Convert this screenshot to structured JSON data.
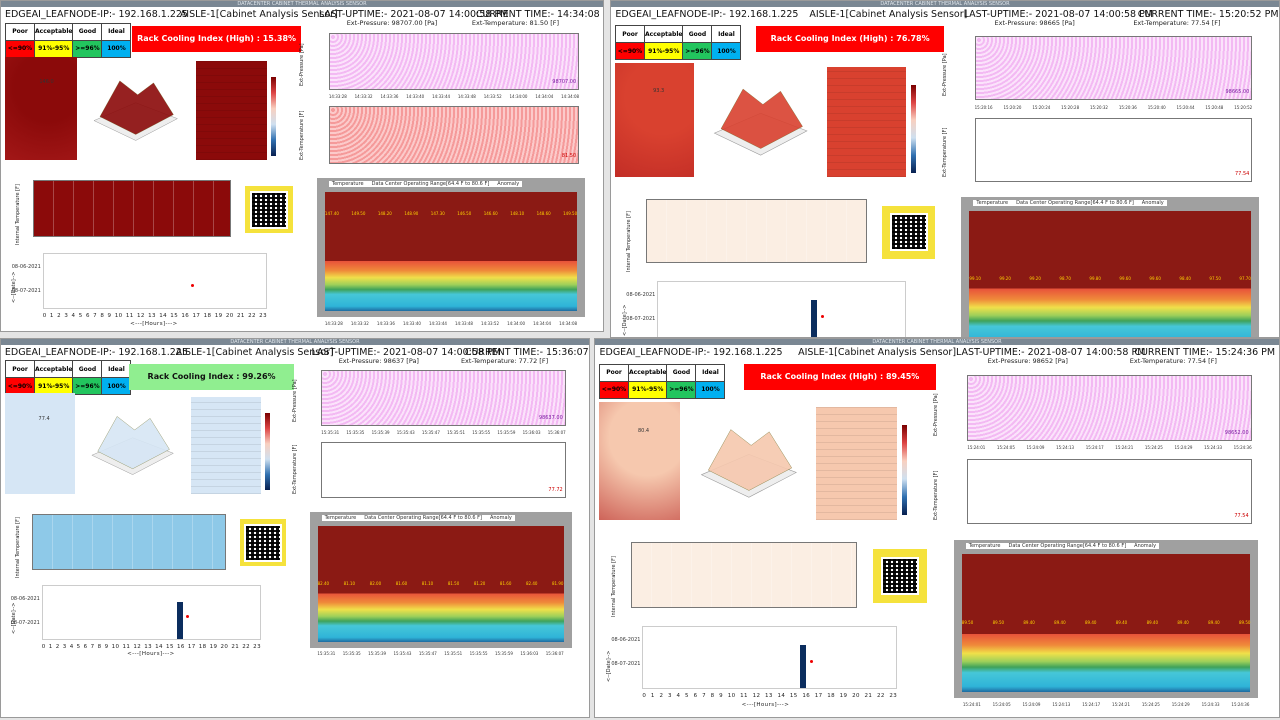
{
  "window_title": "DATACENTER CABINET THERMAL ANALYSIS SENSOR",
  "colors": {
    "poor": "#ff0000",
    "acceptable": "#ffff00",
    "good": "#22c55e",
    "ideal": "#00b0f0",
    "rci_high": "#ff0000",
    "rci_normal": "#90ee90"
  },
  "legend": {
    "headers": [
      "Poor",
      "Acceptable",
      "Good",
      "Ideal"
    ],
    "values": [
      "<=90%",
      "91%-95%",
      ">=96%",
      "100%"
    ]
  },
  "panels": [
    {
      "node": "EDGEAI_LEAFNODE-IP:- 192.168.1.225",
      "aisle": "AISLE-1[Cabinet Analysis Sensor]",
      "uptime": "LAST-UPTIME:- 2021-08-07 14:00:58 PM",
      "current": "CURRENT TIME:- 14:34:08 PM",
      "rci": "Rack Cooling Index (High) : 15.38%",
      "rci_state": "high",
      "ext_pressure": "Ext-Pressure: 98707.00 [Pa]",
      "ext_temperature": "Ext-Temperature: 81.50 [F]",
      "pressure_end": "98707.00",
      "temp_end": "81.50",
      "times": [
        "14:33:28",
        "14:33:32",
        "14:33:36",
        "14:33:40",
        "14:33:44",
        "14:33:48",
        "14:33:52",
        "14:34:00",
        "14:34:04",
        "14:34:08"
      ],
      "hourly_labels": [
        "147.40",
        "149.50",
        "148.20",
        "148.90",
        "147.30",
        "146.50",
        "146.60",
        "148.10",
        "148.60",
        "149.50"
      ],
      "heat_value": "146.0",
      "heat_color": "#8b0a0a",
      "int_temp_y_max": "150"
    },
    {
      "node": "EDGEAI_LEAFNODE-IP:- 192.168.1.225",
      "aisle": "AISLE-1[Cabinet Analysis Sensor]",
      "uptime": "LAST-UPTIME:- 2021-08-07 14:00:58 PM",
      "current": "CURRENT TIME:- 15:20:52 PM",
      "rci": "Rack Cooling Index (High) : 76.78%",
      "rci_state": "high",
      "ext_pressure": "Ext-Pressure: 98665 [Pa]",
      "ext_temperature": "Ext-Temperature: 77.54 [F]",
      "pressure_end": "98665.00",
      "temp_end": "77.54",
      "times": [
        "15:20:16",
        "15:20:20",
        "15:20:24",
        "15:20:28",
        "15:20:32",
        "15:20:36",
        "15:20:40",
        "15:20:44",
        "15:20:48",
        "15:20:52"
      ],
      "hourly_labels": [
        "99.10",
        "99.20",
        "99.20",
        "98.70",
        "99.80",
        "99.60",
        "99.60",
        "98.40",
        "97.50",
        "97.70"
      ],
      "heat_value": "93.3",
      "heat_color": "#d9412f",
      "int_temp_y_max": "100"
    },
    {
      "node": "EDGEAI_LEAFNODE-IP:- 192.168.1.225",
      "aisle": "AISLE-1[Cabinet Analysis Sensor]",
      "uptime": "LAST-UPTIME:- 2021-08-07 14:00:58 PM",
      "current": "CURRENT TIME:- 15:36:07 PM",
      "rci": "Rack Cooling Index : 99.26%",
      "rci_state": "normal",
      "ext_pressure": "Ext-Pressure: 98637 [Pa]",
      "ext_temperature": "Ext-Temperature: 77.72 [F]",
      "pressure_end": "98637.00",
      "temp_end": "77.72",
      "times": [
        "15:35:31",
        "15:35:35",
        "15:35:39",
        "15:35:43",
        "15:35:47",
        "15:35:51",
        "15:35:55",
        "15:35:59",
        "15:36:03",
        "15:36:07"
      ],
      "hourly_labels": [
        "82.40",
        "81.10",
        "82.00",
        "81.60",
        "81.10",
        "81.50",
        "81.20",
        "81.60",
        "82.40",
        "81.90"
      ],
      "heat_value": "77.4",
      "heat_color": "#d6e6f5",
      "int_temp_y_max": "80"
    },
    {
      "node": "EDGEAI_LEAFNODE-IP:- 192.168.1.225",
      "aisle": "AISLE-1[Cabinet Analysis Sensor]",
      "uptime": "LAST-UPTIME:- 2021-08-07 14:00:58 PM",
      "current": "CURRENT TIME:- 15:24:36 PM",
      "rci": "Rack Cooling Index (High) : 89.45%",
      "rci_state": "high",
      "ext_pressure": "Ext-Pressure: 98652 [Pa]",
      "ext_temperature": "Ext-Temperature: 77.54 [F]",
      "pressure_end": "98652.00",
      "temp_end": "77.54",
      "times": [
        "15:24:01",
        "15:24:05",
        "15:24:09",
        "15:24:13",
        "15:24:17",
        "15:24:21",
        "15:24:25",
        "15:24:29",
        "15:24:33",
        "15:24:36"
      ],
      "hourly_labels": [
        "89.50",
        "89.50",
        "89.40",
        "89.40",
        "89.40",
        "89.40",
        "89.40",
        "89.40",
        "89.40",
        "89.50"
      ],
      "heat_value": "80.4",
      "heat_color": "#f6c8ae",
      "int_temp_y_max": "80"
    }
  ],
  "labels": {
    "ext_pressure_axis": "Ext-Pressure [Pa]",
    "ext_temp_axis": "Ext-Temperature [F]",
    "internal_temp_axis": "Internal Temperature [F]",
    "date_axis": "<--[Date]-->",
    "hours_axis": "<---[Hours]--->",
    "dates": [
      "08-06-2021",
      "08-07-2021"
    ],
    "hours": [
      "0",
      "1",
      "2",
      "3",
      "4",
      "5",
      "6",
      "7",
      "8",
      "9",
      "10",
      "11",
      "12",
      "13",
      "14",
      "15",
      "16",
      "17",
      "18",
      "19",
      "20",
      "21",
      "22",
      "23"
    ],
    "legend_temperature": "Temperature",
    "legend_range": "Data Center Operating Range[64.4 F to 80.6 F]",
    "legend_anomaly": "Anomaly"
  }
}
